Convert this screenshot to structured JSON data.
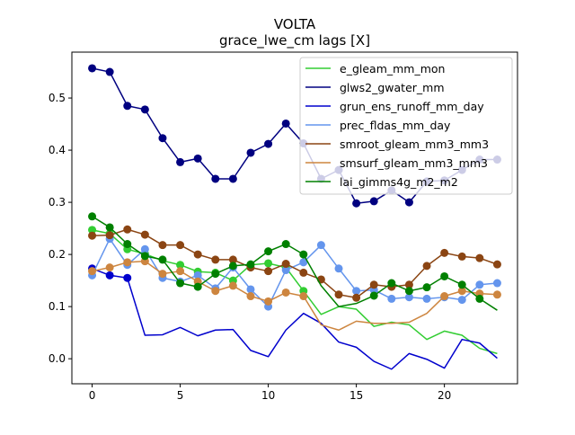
{
  "chart_data": {
    "type": "line",
    "title": "VOLTA",
    "subtitle": "grace_lwe_cm lags [X]",
    "xlabel": "",
    "ylabel": "",
    "xlim": [
      -1.15,
      24.15
    ],
    "ylim": [
      -0.048,
      0.588
    ],
    "xticks": [
      0,
      5,
      10,
      15,
      20
    ],
    "yticks": [
      0.0,
      0.1,
      0.2,
      0.3,
      0.4,
      0.5
    ],
    "ytick_labels": [
      "0.0",
      "0.1",
      "0.2",
      "0.3",
      "0.4",
      "0.5"
    ],
    "grid": false,
    "legend_position": "top-right",
    "x": [
      0,
      1,
      2,
      3,
      4,
      5,
      6,
      7,
      8,
      9,
      10,
      11,
      12,
      13,
      14,
      15,
      16,
      17,
      18,
      19,
      20,
      21,
      22,
      23
    ],
    "series": [
      {
        "name": "e_gleam_mm_mon",
        "color": "#32cd32",
        "values": [
          0.247,
          0.24,
          0.21,
          0.201,
          0.188,
          0.18,
          0.167,
          0.165,
          0.15,
          0.18,
          0.183,
          0.175,
          0.13,
          0.085,
          0.1,
          0.095,
          0.062,
          0.07,
          0.065,
          0.037,
          0.053,
          0.045,
          0.02,
          0.01
        ],
        "markers": [
          true,
          true,
          true,
          true,
          false,
          true,
          true,
          true,
          true,
          false,
          true,
          true,
          true,
          false,
          false,
          false,
          false,
          false,
          false,
          false,
          false,
          false,
          false,
          false
        ]
      },
      {
        "name": "glws2_gwater_mm",
        "color": "#000080",
        "values": [
          0.557,
          0.55,
          0.485,
          0.478,
          0.423,
          0.377,
          0.384,
          0.345,
          0.345,
          0.395,
          0.412,
          0.451,
          0.413,
          0.345,
          0.362,
          0.298,
          0.302,
          0.323,
          0.3,
          0.34,
          0.342,
          0.362,
          0.382,
          0.382
        ],
        "markers": [
          true,
          true,
          true,
          true,
          true,
          true,
          true,
          true,
          true,
          true,
          true,
          true,
          true,
          true,
          true,
          true,
          true,
          true,
          true,
          true,
          true,
          true,
          true,
          true
        ]
      },
      {
        "name": "grun_ens_runoff_mm_day",
        "color": "#0000cd",
        "values": [
          0.173,
          0.16,
          0.155,
          0.045,
          0.046,
          0.06,
          0.044,
          0.055,
          0.056,
          0.016,
          0.004,
          0.055,
          0.087,
          0.068,
          0.032,
          0.022,
          -0.005,
          -0.02,
          0.01,
          -0.001,
          -0.018,
          0.037,
          0.03,
          0.001
        ],
        "markers": [
          true,
          true,
          true,
          false,
          false,
          false,
          false,
          false,
          false,
          false,
          false,
          false,
          false,
          false,
          false,
          false,
          false,
          false,
          false,
          false,
          false,
          false,
          false,
          false
        ]
      },
      {
        "name": "prec_fldas_mm_day",
        "color": "#6495ed",
        "values": [
          0.16,
          0.23,
          0.18,
          0.21,
          0.155,
          0.148,
          0.16,
          0.135,
          0.175,
          0.133,
          0.1,
          0.17,
          0.185,
          0.218,
          0.173,
          0.13,
          0.132,
          0.115,
          0.118,
          0.115,
          0.118,
          0.113,
          0.142,
          0.145
        ],
        "markers": [
          true,
          true,
          true,
          true,
          true,
          true,
          true,
          true,
          true,
          true,
          true,
          true,
          true,
          true,
          true,
          true,
          true,
          true,
          true,
          true,
          true,
          true,
          true,
          true
        ]
      },
      {
        "name": "smroot_gleam_mm3_mm3",
        "color": "#8b4513",
        "values": [
          0.236,
          0.237,
          0.248,
          0.238,
          0.218,
          0.218,
          0.2,
          0.19,
          0.19,
          0.175,
          0.168,
          0.182,
          0.165,
          0.152,
          0.123,
          0.117,
          0.142,
          0.138,
          0.142,
          0.178,
          0.203,
          0.196,
          0.193,
          0.181
        ],
        "markers": [
          true,
          true,
          true,
          true,
          true,
          true,
          true,
          true,
          true,
          true,
          true,
          true,
          true,
          true,
          true,
          true,
          true,
          true,
          true,
          true,
          true,
          true,
          true,
          true
        ]
      },
      {
        "name": "smsurf_gleam_mm3_mm3",
        "color": "#cd853f",
        "values": [
          0.168,
          0.175,
          0.185,
          0.187,
          0.163,
          0.168,
          0.148,
          0.13,
          0.14,
          0.12,
          0.11,
          0.127,
          0.12,
          0.065,
          0.055,
          0.072,
          0.068,
          0.068,
          0.07,
          0.087,
          0.12,
          0.13,
          0.125,
          0.123
        ],
        "markers": [
          true,
          true,
          true,
          true,
          true,
          true,
          true,
          true,
          true,
          true,
          true,
          true,
          true,
          false,
          false,
          false,
          false,
          false,
          false,
          false,
          true,
          true,
          true,
          true
        ]
      },
      {
        "name": "lai_gimms4g_m2_m2",
        "color": "#008000",
        "values": [
          0.273,
          0.252,
          0.22,
          0.197,
          0.19,
          0.145,
          0.138,
          0.163,
          0.178,
          0.181,
          0.206,
          0.22,
          0.2,
          0.14,
          0.1,
          0.106,
          0.121,
          0.145,
          0.13,
          0.137,
          0.158,
          0.142,
          0.115,
          0.093
        ],
        "markers": [
          true,
          true,
          true,
          true,
          true,
          true,
          true,
          true,
          true,
          true,
          true,
          true,
          true,
          false,
          false,
          false,
          true,
          true,
          true,
          true,
          true,
          true,
          true,
          false
        ]
      }
    ]
  }
}
